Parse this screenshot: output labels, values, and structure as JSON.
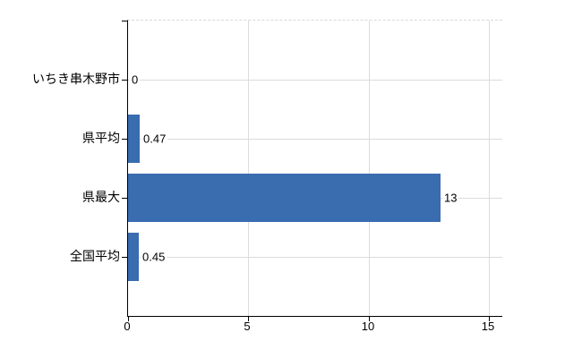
{
  "chart_data": {
    "type": "bar",
    "orientation": "horizontal",
    "title": "",
    "xlabel": "",
    "ylabel": "",
    "categories": [
      "いちき串木野市",
      "県平均",
      "県最大",
      "全国平均"
    ],
    "values": [
      0,
      0.47,
      13,
      0.45
    ],
    "value_labels": [
      "0",
      "0.47",
      "13",
      "0.45"
    ],
    "x_ticks": [
      0,
      5,
      10,
      15
    ],
    "x_tick_labels": [
      "0",
      "5",
      "10",
      "15"
    ],
    "xlim": [
      0,
      15.56
    ],
    "grid": true,
    "legend": "none",
    "bar_color": "#3a6cb0"
  },
  "colors": {
    "bar": "#3a6cb0",
    "grid": "#dcdcdc",
    "axis": "#000000",
    "text": "#000000",
    "background": "#ffffff"
  }
}
